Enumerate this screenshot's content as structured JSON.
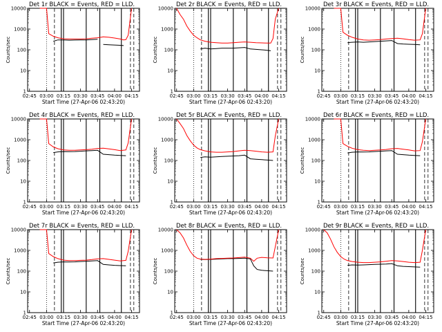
{
  "chart_data": {
    "type": "line",
    "layout": "3x3 grid",
    "legend_note": "BLACK = Events, RED = LLD.",
    "series_colors": {
      "events": "#000000",
      "lld": "#ff0000"
    },
    "y_scale": "log",
    "ylim": [
      1,
      10000
    ],
    "ylabel": "Counts/sec",
    "y_ticks": [
      "1",
      "10",
      "100",
      "1000",
      "10000"
    ],
    "x_ticks": [
      "02:45",
      "03:00",
      "03:15",
      "03:30",
      "03:45",
      "04:00",
      "04:15"
    ],
    "x_range": [
      "02:43:20",
      "04:22:00"
    ],
    "xlabel": "Start Time (27-Apr-06 02:43:20)",
    "panels": [
      {
        "title": "Det 1r BLACK = Events, RED = LLD.",
        "x": [
          "02:54",
          "03:00",
          "03:02",
          "03:06",
          "03:10",
          "03:15",
          "03:20",
          "03:25",
          "03:30",
          "03:35",
          "03:40",
          "03:45",
          "03:48",
          "03:50",
          "03:55",
          "04:00",
          "04:05",
          "04:08",
          "04:10",
          "04:12",
          "04:15"
        ],
        "lld": [
          10000,
          10000,
          600,
          450,
          380,
          340,
          330,
          330,
          330,
          340,
          360,
          380,
          400,
          420,
          400,
          370,
          330,
          300,
          310,
          500,
          10000
        ],
        "events": [
          null,
          null,
          null,
          260,
          300,
          300,
          290,
          295,
          300,
          300,
          310,
          320,
          null,
          180,
          175,
          170,
          165,
          160,
          null,
          null,
          null
        ],
        "vlines": [
          "03:00",
          "03:07",
          "03:13",
          "03:15",
          "03:35",
          "03:47",
          "04:06",
          "04:14",
          "04:17"
        ]
      },
      {
        "title": "Det 2r BLACK = Events, RED = LLD.",
        "x": [
          "02:45",
          "02:48",
          "02:51",
          "02:54",
          "02:57",
          "03:00",
          "03:03",
          "03:06",
          "03:10",
          "03:15",
          "03:20",
          "03:25",
          "03:30",
          "03:35",
          "03:40",
          "03:45",
          "03:50",
          "03:55",
          "04:00",
          "04:05",
          "04:08",
          "04:10",
          "04:12",
          "04:15"
        ],
        "lld": [
          10000,
          5000,
          3000,
          1400,
          800,
          500,
          380,
          300,
          260,
          230,
          220,
          210,
          210,
          220,
          230,
          240,
          230,
          220,
          215,
          210,
          210,
          350,
          3000,
          10000
        ],
        "events": [
          null,
          null,
          null,
          null,
          null,
          null,
          null,
          110,
          120,
          110,
          115,
          120,
          120,
          120,
          125,
          130,
          110,
          105,
          100,
          95,
          90,
          null,
          null,
          null
        ],
        "vlines": [
          "03:00",
          "03:07",
          "03:13",
          "03:15",
          "03:35",
          "03:47",
          "04:06",
          "04:14",
          "04:17"
        ]
      },
      {
        "title": "Det 3r BLACK = Events, RED = LLD.",
        "x": [
          "02:54",
          "03:00",
          "03:02",
          "03:06",
          "03:10",
          "03:15",
          "03:20",
          "03:25",
          "03:30",
          "03:35",
          "03:40",
          "03:45",
          "03:50",
          "03:55",
          "04:00",
          "04:05",
          "04:10",
          "04:12",
          "04:15"
        ],
        "lld": [
          10000,
          10000,
          700,
          500,
          400,
          330,
          300,
          290,
          300,
          310,
          330,
          350,
          360,
          340,
          310,
          290,
          300,
          600,
          10000
        ],
        "events": [
          null,
          null,
          null,
          220,
          230,
          240,
          230,
          240,
          250,
          260,
          270,
          280,
          200,
          190,
          185,
          180,
          175,
          null,
          null
        ],
        "vlines": [
          "03:00",
          "03:07",
          "03:13",
          "03:15",
          "03:35",
          "03:47",
          "04:06",
          "04:14",
          "04:17"
        ]
      },
      {
        "title": "Det 4r BLACK = Events, RED = LLD.",
        "x": [
          "02:54",
          "03:00",
          "03:02",
          "03:06",
          "03:10",
          "03:15",
          "03:20",
          "03:25",
          "03:30",
          "03:35",
          "03:40",
          "03:45",
          "03:50",
          "03:55",
          "04:00",
          "04:05",
          "04:10",
          "04:12",
          "04:15"
        ],
        "lld": [
          10000,
          10000,
          650,
          450,
          370,
          320,
          310,
          310,
          320,
          330,
          350,
          380,
          390,
          360,
          330,
          300,
          320,
          700,
          10000
        ],
        "events": [
          null,
          null,
          null,
          240,
          260,
          270,
          265,
          270,
          280,
          290,
          300,
          310,
          200,
          190,
          180,
          175,
          170,
          null,
          null
        ],
        "vlines": [
          "03:00",
          "03:07",
          "03:13",
          "03:15",
          "03:35",
          "03:47",
          "04:06",
          "04:14",
          "04:17"
        ]
      },
      {
        "title": "Det 5r BLACK = Events, RED = LLD.",
        "x": [
          "02:45",
          "02:48",
          "02:51",
          "02:54",
          "02:57",
          "03:00",
          "03:03",
          "03:06",
          "03:10",
          "03:15",
          "03:20",
          "03:25",
          "03:30",
          "03:35",
          "03:40",
          "03:45",
          "03:50",
          "03:55",
          "04:00",
          "04:05",
          "04:10",
          "04:12",
          "04:15"
        ],
        "lld": [
          10000,
          6000,
          3500,
          1600,
          900,
          550,
          400,
          330,
          290,
          260,
          250,
          250,
          260,
          270,
          290,
          310,
          300,
          280,
          260,
          250,
          260,
          1500,
          10000
        ],
        "events": [
          null,
          null,
          null,
          null,
          null,
          null,
          null,
          140,
          150,
          145,
          150,
          155,
          160,
          165,
          170,
          180,
          120,
          115,
          110,
          105,
          100,
          null,
          null
        ],
        "vlines": [
          "03:00",
          "03:07",
          "03:13",
          "03:15",
          "03:35",
          "03:47",
          "04:06",
          "04:14",
          "04:17"
        ]
      },
      {
        "title": "Det 6r BLACK = Events, RED = LLD.",
        "x": [
          "02:54",
          "03:00",
          "03:02",
          "03:06",
          "03:10",
          "03:15",
          "03:20",
          "03:25",
          "03:30",
          "03:35",
          "03:40",
          "03:45",
          "03:50",
          "03:55",
          "04:00",
          "04:05",
          "04:10",
          "04:12",
          "04:15"
        ],
        "lld": [
          10000,
          10000,
          650,
          480,
          390,
          330,
          310,
          300,
          310,
          320,
          340,
          370,
          380,
          350,
          320,
          290,
          300,
          800,
          10000
        ],
        "events": [
          null,
          null,
          null,
          230,
          250,
          260,
          255,
          260,
          270,
          280,
          290,
          300,
          200,
          190,
          180,
          175,
          170,
          null,
          null
        ],
        "vlines": [
          "03:00",
          "03:07",
          "03:13",
          "03:15",
          "03:35",
          "03:47",
          "04:06",
          "04:14",
          "04:17"
        ]
      },
      {
        "title": "Det 7r BLACK = Events, RED = LLD.",
        "x": [
          "02:54",
          "03:00",
          "03:02",
          "03:06",
          "03:10",
          "03:15",
          "03:20",
          "03:25",
          "03:30",
          "03:35",
          "03:40",
          "03:45",
          "03:50",
          "03:55",
          "04:00",
          "04:05",
          "04:10",
          "04:12",
          "04:15"
        ],
        "lld": [
          10000,
          10000,
          700,
          500,
          400,
          340,
          320,
          320,
          330,
          340,
          360,
          390,
          400,
          370,
          340,
          310,
          330,
          900,
          10000
        ],
        "events": [
          null,
          null,
          null,
          250,
          270,
          280,
          275,
          280,
          290,
          300,
          310,
          320,
          210,
          200,
          190,
          185,
          180,
          null,
          null
        ],
        "vlines": [
          "03:00",
          "03:07",
          "03:13",
          "03:15",
          "03:35",
          "03:47",
          "04:06",
          "04:14",
          "04:17"
        ]
      },
      {
        "title": "Det 8r BLACK = Events, RED = LLD.",
        "x": [
          "02:45",
          "02:48",
          "02:51",
          "02:54",
          "02:57",
          "03:00",
          "03:03",
          "03:06",
          "03:10",
          "03:15",
          "03:20",
          "03:25",
          "03:30",
          "03:35",
          "03:40",
          "03:45",
          "03:50",
          "03:53",
          "03:56",
          "04:00",
          "04:05",
          "04:10",
          "04:12",
          "04:15"
        ],
        "lld": [
          10000,
          7000,
          4000,
          1800,
          900,
          550,
          420,
          380,
          370,
          380,
          400,
          410,
          420,
          430,
          450,
          470,
          420,
          300,
          420,
          460,
          440,
          430,
          1500,
          10000
        ],
        "events": [
          null,
          null,
          null,
          null,
          null,
          null,
          null,
          370,
          360,
          370,
          380,
          390,
          400,
          400,
          410,
          420,
          390,
          180,
          120,
          110,
          105,
          100,
          null,
          null
        ],
        "vlines": [
          "03:00",
          "03:07",
          "03:13",
          "03:15",
          "03:35",
          "03:47",
          "04:06",
          "04:14",
          "04:17"
        ]
      },
      {
        "title": "Det 9r BLACK = Events, RED = LLD.",
        "x": [
          "02:45",
          "02:48",
          "02:51",
          "02:54",
          "02:57",
          "03:00",
          "03:03",
          "03:06",
          "03:10",
          "03:15",
          "03:20",
          "03:25",
          "03:30",
          "03:35",
          "03:40",
          "03:45",
          "03:50",
          "03:55",
          "04:00",
          "04:05",
          "04:10",
          "04:12",
          "04:15"
        ],
        "lld": [
          10000,
          7000,
          3500,
          1500,
          800,
          500,
          380,
          320,
          290,
          270,
          260,
          260,
          270,
          280,
          300,
          320,
          310,
          290,
          270,
          260,
          270,
          1000,
          10000
        ],
        "events": [
          null,
          null,
          null,
          null,
          null,
          null,
          null,
          190,
          200,
          195,
          200,
          205,
          210,
          215,
          220,
          230,
          180,
          170,
          165,
          160,
          155,
          null,
          null
        ],
        "vlines": [
          "03:00",
          "03:07",
          "03:13",
          "03:15",
          "03:35",
          "03:47",
          "04:06",
          "04:14",
          "04:17"
        ]
      }
    ]
  }
}
